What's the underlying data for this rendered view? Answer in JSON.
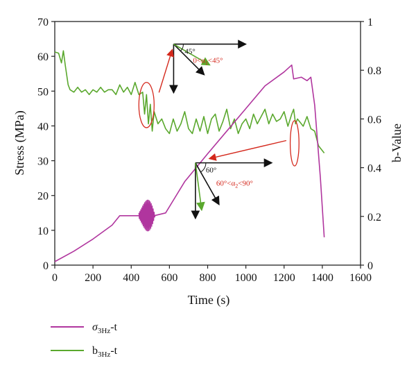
{
  "chart_data": {
    "type": "line",
    "xlabel": "Time (s)",
    "ylabel_left": "Stress (MPa)",
    "ylabel_right": "b-Value",
    "xlim": [
      0,
      1600
    ],
    "ylim_left": [
      0,
      70
    ],
    "ylim_right": [
      0,
      1
    ],
    "x_ticks": [
      "0",
      "200",
      "400",
      "600",
      "800",
      "1000",
      "1200",
      "1400",
      "1600"
    ],
    "y_left_ticks": [
      "0",
      "10",
      "20",
      "30",
      "40",
      "50",
      "60",
      "70"
    ],
    "y_right_ticks": [
      "0",
      "0.2",
      "0.4",
      "0.6",
      "0.8",
      "1"
    ],
    "series": [
      {
        "name": "σ3Hz-t",
        "name_main": "σ",
        "name_sub": "3Hz",
        "name_suffix": "-t",
        "axis": "left",
        "color": "#b0359e",
        "x": [
          0,
          100,
          200,
          300,
          340,
          420,
          440,
          520,
          580,
          680,
          800,
          900,
          1000,
          1100,
          1200,
          1240,
          1250,
          1290,
          1320,
          1340,
          1360,
          1390,
          1410
        ],
        "y": [
          1,
          4,
          7.5,
          11.5,
          14.2,
          14.2,
          14.2,
          14.2,
          15,
          24,
          32,
          38.5,
          45,
          51.5,
          55.5,
          57.5,
          53.5,
          54,
          53,
          54,
          46,
          25,
          8
        ],
        "burst_region": {
          "x_start": 440,
          "x_end": 525,
          "y_min": 7.5,
          "y_max": 21
        }
      },
      {
        "name": "b3Hz-t",
        "name_main": "b",
        "name_sub": "3Hz",
        "name_suffix": "-t",
        "axis": "right",
        "color": "#5aa82d",
        "x": [
          0,
          20,
          35,
          45,
          55,
          70,
          80,
          100,
          120,
          140,
          160,
          180,
          200,
          220,
          240,
          260,
          280,
          300,
          320,
          340,
          360,
          380,
          400,
          420,
          440,
          460,
          470,
          480,
          490,
          500,
          510,
          520,
          540,
          560,
          580,
          600,
          620,
          640,
          660,
          680,
          700,
          720,
          740,
          760,
          780,
          800,
          820,
          840,
          860,
          880,
          900,
          920,
          940,
          960,
          980,
          1000,
          1020,
          1040,
          1060,
          1080,
          1100,
          1120,
          1140,
          1160,
          1180,
          1200,
          1220,
          1240,
          1250,
          1260,
          1270,
          1280,
          1300,
          1320,
          1340,
          1360,
          1380,
          1400,
          1410
        ],
        "y": [
          0.875,
          0.87,
          0.83,
          0.88,
          0.82,
          0.74,
          0.72,
          0.71,
          0.73,
          0.71,
          0.72,
          0.7,
          0.72,
          0.71,
          0.73,
          0.71,
          0.72,
          0.72,
          0.7,
          0.74,
          0.71,
          0.73,
          0.7,
          0.75,
          0.7,
          0.71,
          0.62,
          0.7,
          0.58,
          0.66,
          0.55,
          0.63,
          0.58,
          0.6,
          0.56,
          0.54,
          0.6,
          0.55,
          0.58,
          0.63,
          0.56,
          0.54,
          0.6,
          0.55,
          0.61,
          0.54,
          0.6,
          0.62,
          0.55,
          0.59,
          0.64,
          0.56,
          0.6,
          0.54,
          0.58,
          0.6,
          0.56,
          0.62,
          0.58,
          0.61,
          0.64,
          0.58,
          0.62,
          0.59,
          0.6,
          0.63,
          0.57,
          0.62,
          0.64,
          0.58,
          0.6,
          0.59,
          0.57,
          0.61,
          0.56,
          0.55,
          0.49,
          0.47,
          0.46
        ]
      }
    ],
    "annotations": [
      {
        "type": "ellipse",
        "x": 480,
        "y_left": 46,
        "rx_data": 40,
        "ry_data": 6.5,
        "color": "#d4281c"
      },
      {
        "type": "ellipse",
        "x": 1255,
        "y_left": 35,
        "rx_data": 23,
        "ry_data": 6.5,
        "color": "#d4281c"
      },
      {
        "type": "inset_axes",
        "x": 680,
        "y_left": 63.5,
        "angle_label": "45°",
        "range_label": "0<α1<45°",
        "range_main": "0<α",
        "range_sub": "1",
        "range_tail": "<45°"
      },
      {
        "type": "inset_axes",
        "x": 990,
        "y_left": 27,
        "angle_label": "60°",
        "range_label": "60°<α2<90°",
        "range_main": "60°<α",
        "range_sub": "2",
        "range_tail": "<90°"
      }
    ]
  }
}
